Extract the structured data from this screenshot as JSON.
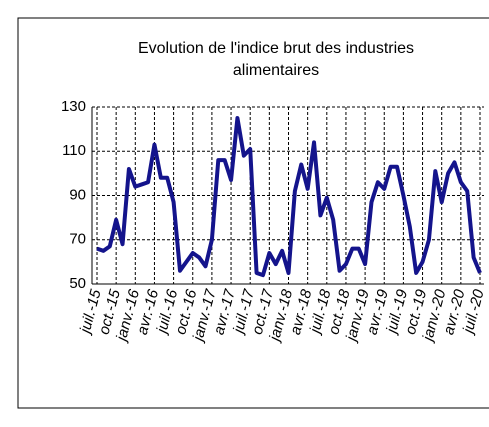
{
  "chart_data": {
    "type": "line",
    "title": "Evolution  de l'indice brut des industries alimentaires",
    "categories": [
      "juil.-15",
      null,
      null,
      "oct.-15",
      null,
      null,
      "janv.-16",
      null,
      null,
      "avr.-16",
      null,
      null,
      "juil.-16",
      null,
      null,
      "oct.-16",
      null,
      null,
      "janv.-17",
      null,
      null,
      "avr.-17",
      null,
      null,
      "juil.-17",
      null,
      null,
      "oct.-17",
      null,
      null,
      "janv.-18",
      null,
      null,
      "avr.-18",
      null,
      null,
      "juil.-18",
      null,
      null,
      "oct.-18",
      null,
      null,
      "janv.-19",
      null,
      null,
      "avr.-19",
      null,
      null,
      "juil.-19",
      null,
      null,
      "oct.-19",
      null,
      null,
      "janv.-20",
      null,
      null,
      "avr.-20",
      null,
      null,
      "juil.-20"
    ],
    "values": [
      66,
      65,
      67,
      79,
      68,
      102,
      94,
      95,
      96,
      113,
      98,
      98,
      87,
      56,
      60,
      64,
      62,
      58,
      70,
      106,
      106,
      97,
      125,
      108,
      111,
      55,
      54,
      64,
      59,
      65,
      55,
      92,
      104,
      93,
      114,
      81,
      89,
      79,
      56,
      59,
      66,
      66,
      59,
      87,
      96,
      93,
      103,
      103,
      90,
      76,
      55,
      60,
      70,
      101,
      87,
      100,
      105,
      96,
      92,
      62,
      55
    ],
    "color": "#14148c",
    "ylim": [
      50,
      130
    ],
    "yticks": [
      50,
      70,
      90,
      110,
      130
    ],
    "grid": true
  }
}
